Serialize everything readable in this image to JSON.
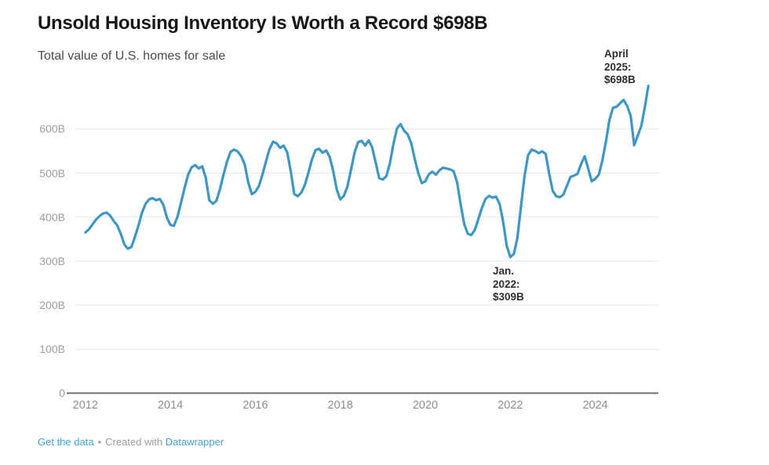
{
  "header": {
    "title": "Unsold Housing Inventory Is Worth a Record $698B",
    "subtitle": "Total value of U.S. homes for sale"
  },
  "chart_data": {
    "type": "line",
    "title": "Unsold Housing Inventory Is Worth a Record $698B",
    "subtitle": "Total value of U.S. homes for sale",
    "unit": "billions of USD",
    "frequency": "monthly",
    "x_start": "2012-01",
    "x_end": "2025-04",
    "ylim": [
      0,
      700
    ],
    "grid": "horizontal",
    "line_color": "#3d97c6",
    "grid_color": "#e7e7e7",
    "axis_color": "#6f6f6f",
    "yticks": [
      {
        "value": 0,
        "label": "0"
      },
      {
        "value": 100,
        "label": "100B"
      },
      {
        "value": 200,
        "label": "200B"
      },
      {
        "value": 300,
        "label": "300B"
      },
      {
        "value": 400,
        "label": "400B"
      },
      {
        "value": 500,
        "label": "500B"
      },
      {
        "value": 600,
        "label": "600B"
      }
    ],
    "xticks": [
      {
        "year": 2012,
        "label": "2012"
      },
      {
        "year": 2014,
        "label": "2014"
      },
      {
        "year": 2016,
        "label": "2016"
      },
      {
        "year": 2018,
        "label": "2018"
      },
      {
        "year": 2020,
        "label": "2020"
      },
      {
        "year": 2022,
        "label": "2022"
      },
      {
        "year": 2024,
        "label": "2024"
      }
    ],
    "values_by_year": [
      {
        "year": 2012,
        "values": [
          365,
          372,
          383,
          394,
          402,
          408,
          410,
          403,
          391,
          381,
          362,
          338
        ]
      },
      {
        "year": 2013,
        "values": [
          328,
          332,
          355,
          381,
          410,
          430,
          440,
          443,
          438,
          441,
          428,
          399
        ]
      },
      {
        "year": 2014,
        "values": [
          382,
          380,
          400,
          432,
          466,
          496,
          513,
          518,
          510,
          515,
          489,
          438
        ]
      },
      {
        "year": 2015,
        "values": [
          430,
          437,
          463,
          496,
          526,
          548,
          553,
          549,
          538,
          519,
          478,
          452
        ]
      },
      {
        "year": 2016,
        "values": [
          457,
          470,
          496,
          526,
          554,
          571,
          567,
          557,
          562,
          547,
          504,
          452
        ]
      },
      {
        "year": 2017,
        "values": [
          447,
          456,
          473,
          501,
          531,
          552,
          555,
          546,
          551,
          536,
          504,
          462
        ]
      },
      {
        "year": 2018,
        "values": [
          440,
          448,
          469,
          506,
          546,
          570,
          573,
          562,
          574,
          558,
          523,
          488
        ]
      },
      {
        "year": 2019,
        "values": [
          485,
          493,
          522,
          566,
          601,
          611,
          596,
          588,
          568,
          532,
          500,
          477
        ]
      },
      {
        "year": 2020,
        "values": [
          481,
          497,
          503,
          496,
          506,
          512,
          510,
          508,
          504,
          478,
          428,
          384
        ]
      },
      {
        "year": 2021,
        "values": [
          362,
          359,
          371,
          396,
          421,
          441,
          448,
          444,
          446,
          429,
          388,
          334
        ]
      },
      {
        "year": 2022,
        "values": [
          309,
          316,
          352,
          422,
          492,
          540,
          553,
          550,
          545,
          549,
          543,
          498
        ]
      },
      {
        "year": 2023,
        "values": [
          459,
          447,
          445,
          451,
          471,
          491,
          494,
          498,
          520,
          538,
          510,
          481
        ]
      },
      {
        "year": 2024,
        "values": [
          487,
          496,
          528,
          570,
          620,
          648,
          650,
          658,
          666,
          652,
          630,
          563
        ]
      },
      {
        "year": 2025,
        "values": [
          585,
          607,
          650,
          698
        ]
      }
    ],
    "annotations": [
      {
        "id": "jan-2022",
        "month": "2022-01",
        "value": 309,
        "lines": [
          "Jan.",
          "2022:",
          "$309B"
        ]
      },
      {
        "id": "april-2025",
        "month": "2025-04",
        "value": 698,
        "lines": [
          "April",
          "2025:",
          "$698B"
        ]
      }
    ]
  },
  "footer": {
    "get_data": "Get the data",
    "separator": "•",
    "created_with": "Created with",
    "datawrapper": "Datawrapper"
  }
}
